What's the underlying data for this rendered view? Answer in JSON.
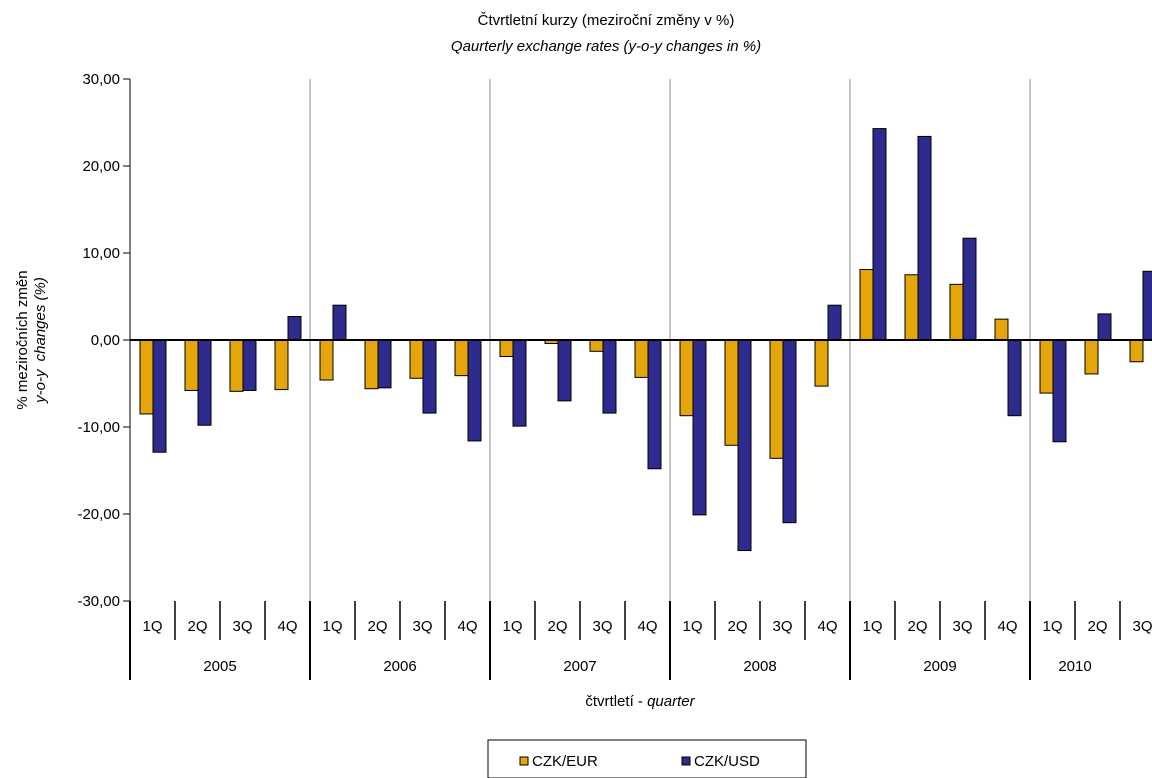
{
  "chart_data": {
    "type": "bar",
    "title": "Čtvrtletní kurzy (meziroční změny v %)",
    "subtitle": "Qaurterly exchange rates (y-o-y changes in %)",
    "ylabel": "% meziročních změn",
    "ylabel_italic": "y-o-y",
    "ylabel_italic_2": "changes (%)",
    "xlabel": "čtvrtletí - ",
    "xlabel_italic": "quarter",
    "ylim": [
      -30,
      30
    ],
    "yticks": [
      30,
      20,
      10,
      0,
      -10,
      -20,
      -30
    ],
    "ytick_labels": [
      "30,00",
      "20,00",
      "10,00",
      "0,00",
      "-10,00",
      "-20,00",
      "-30,00"
    ],
    "grid": "vertical lines between years",
    "legend_position": "bottom",
    "years": [
      "2005",
      "2006",
      "2007",
      "2008",
      "2009",
      "2010"
    ],
    "quarters_per_year": 4,
    "categories": [
      "1Q",
      "2Q",
      "3Q",
      "4Q",
      "1Q",
      "2Q",
      "3Q",
      "4Q",
      "1Q",
      "2Q",
      "3Q",
      "4Q",
      "1Q",
      "2Q",
      "3Q",
      "4Q",
      "1Q",
      "2Q",
      "3Q",
      "4Q",
      "1Q",
      "2Q",
      "3Q"
    ],
    "series": [
      {
        "name": "CZK/EUR",
        "color": "#e5a60c",
        "values": [
          -8.5,
          -5.8,
          -5.9,
          -5.7,
          -4.6,
          -5.6,
          -4.4,
          -4.1,
          -1.9,
          -0.4,
          -1.3,
          -4.3,
          -8.7,
          -12.1,
          -13.6,
          -5.3,
          8.1,
          7.5,
          6.4,
          2.4,
          -6.1,
          -3.9,
          -2.5
        ]
      },
      {
        "name": "CZK/USD",
        "color": "#2e2b8e",
        "values": [
          -12.9,
          -9.8,
          -5.8,
          2.7,
          4.0,
          -5.5,
          -8.4,
          -11.6,
          -9.9,
          -7.0,
          -8.4,
          -14.8,
          -20.1,
          -24.2,
          -21.0,
          4.0,
          24.3,
          23.4,
          11.7,
          -8.7,
          -11.7,
          3.0,
          7.9
        ]
      }
    ]
  }
}
